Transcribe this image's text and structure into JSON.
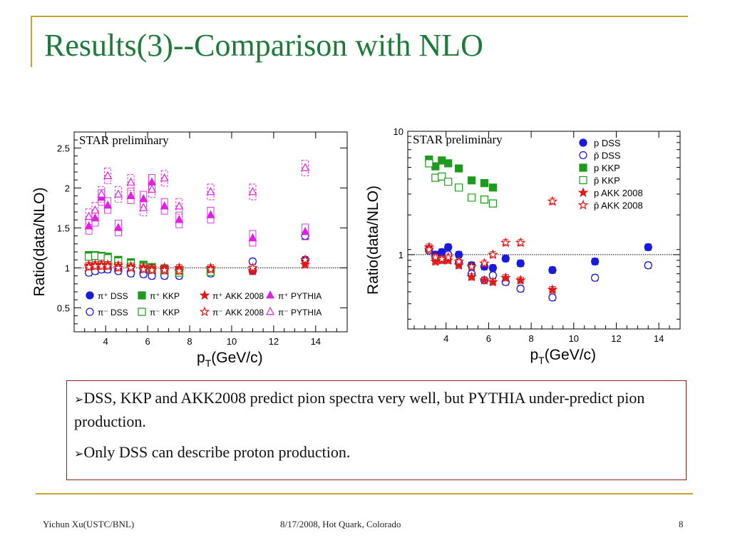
{
  "slide": {
    "title": "Results(3)--Comparison with NLO",
    "bullets": [
      "DSS, KKP and AKK2008 predict pion spectra very well, but PYTHIA under-predict pion production.",
      "Only DSS can describe proton production."
    ],
    "footer": {
      "author": "Yichun Xu(USTC/BNL)",
      "date_place": "8/17/2008, Hot Quark, Colorado",
      "page": "8"
    }
  },
  "chart_data": [
    {
      "type": "scatter",
      "annotation": "STAR preliminary",
      "ylabel": "Ratio(data/NLO)",
      "xlabel_main": "p",
      "xlabel_sub": "T",
      "xlabel_tail": "(GeV/c)",
      "xlim": [
        2.5,
        15.5
      ],
      "ylim": [
        0.2,
        2.7
      ],
      "yscale": "linear",
      "xticks": [
        4,
        6,
        8,
        10,
        12,
        14
      ],
      "yticks": [
        0.5,
        1,
        1.5,
        2,
        2.5
      ],
      "reference_line": 1,
      "legend_position": "bottom",
      "series": [
        {
          "name": "π⁺ DSS",
          "marker": "circle",
          "filled": true,
          "color": "#1a1adc",
          "x": [
            3.2,
            3.5,
            3.8,
            4.1,
            4.6,
            5.2,
            5.8,
            6.2,
            6.8,
            7.5,
            9.0,
            11.0,
            13.5
          ],
          "y": [
            0.95,
            0.97,
            0.99,
            1.0,
            0.98,
            0.95,
            0.94,
            0.93,
            0.93,
            0.92,
            0.97,
            0.96,
            1.1
          ]
        },
        {
          "name": "π⁻ DSS",
          "marker": "circle",
          "filled": false,
          "color": "#1a1adc",
          "x": [
            3.2,
            3.5,
            3.8,
            4.1,
            4.6,
            5.2,
            5.8,
            6.2,
            6.8,
            7.5,
            9.0,
            11.0,
            13.5
          ],
          "y": [
            0.94,
            0.96,
            0.98,
            0.98,
            0.96,
            0.93,
            0.92,
            0.9,
            0.9,
            0.9,
            0.93,
            1.08,
            1.4
          ]
        },
        {
          "name": "π⁺ KKP",
          "marker": "square",
          "filled": true,
          "color": "#1f9a1f",
          "x": [
            3.2,
            3.5,
            3.8,
            4.1,
            4.6,
            5.2,
            5.8,
            6.2,
            6.8,
            7.5,
            9.0
          ],
          "y": [
            1.16,
            1.16,
            1.15,
            1.14,
            1.1,
            1.07,
            1.04,
            1.01,
            0.99,
            0.95,
            0.97
          ]
        },
        {
          "name": "π⁻ KKP",
          "marker": "square",
          "filled": false,
          "color": "#1f9a1f",
          "x": [
            3.2,
            3.5,
            3.8,
            4.1,
            4.6,
            5.2,
            5.8,
            6.2,
            6.8,
            7.5,
            9.0
          ],
          "y": [
            1.14,
            1.15,
            1.14,
            1.12,
            1.08,
            1.05,
            1.02,
            0.99,
            0.97,
            0.94,
            0.95
          ]
        },
        {
          "name": "π⁺ AKK 2008",
          "marker": "star",
          "filled": true,
          "color": "#e01818",
          "x": [
            3.2,
            3.5,
            3.8,
            4.1,
            4.6,
            5.2,
            5.8,
            6.2,
            6.8,
            7.5,
            9.0,
            11.0,
            13.5
          ],
          "y": [
            1.03,
            1.04,
            1.04,
            1.04,
            1.03,
            1.02,
            1.01,
            1.0,
            1.0,
            1.0,
            1.0,
            0.96,
            1.04
          ]
        },
        {
          "name": "π⁻ AKK 2008",
          "marker": "star",
          "filled": false,
          "color": "#e01818",
          "x": [
            3.2,
            3.5,
            3.8,
            4.1,
            4.6,
            5.2,
            5.8,
            6.2,
            6.8,
            7.5,
            9.0,
            11.0,
            13.5
          ],
          "y": [
            1.01,
            1.02,
            1.02,
            1.02,
            1.0,
            1.0,
            0.98,
            0.97,
            0.97,
            0.96,
            0.98,
            1.0,
            1.1
          ]
        },
        {
          "name": "π⁺ PYTHIA",
          "marker": "triangle",
          "filled": true,
          "color": "#e020e0",
          "x": [
            3.2,
            3.5,
            3.8,
            4.1,
            4.6,
            5.2,
            5.8,
            6.2,
            6.8,
            7.5,
            9.0,
            11.0,
            13.5
          ],
          "y": [
            1.52,
            1.62,
            1.88,
            1.78,
            1.5,
            1.9,
            1.86,
            2.07,
            1.77,
            1.6,
            1.66,
            1.37,
            1.45
          ]
        },
        {
          "name": "π⁻ PYTHIA",
          "marker": "triangle",
          "filled": false,
          "color": "#e020e0",
          "x": [
            3.2,
            3.5,
            3.8,
            4.1,
            4.6,
            5.2,
            5.8,
            6.2,
            6.8,
            7.5,
            9.0,
            11.0,
            13.5
          ],
          "y": [
            1.64,
            1.72,
            1.92,
            2.15,
            1.92,
            2.07,
            1.75,
            1.98,
            2.12,
            1.77,
            1.95,
            1.95,
            2.25
          ]
        }
      ]
    },
    {
      "type": "scatter",
      "annotation": "STAR preliminary",
      "ylabel": "Ratio(data/NLO)",
      "xlabel_main": "p",
      "xlabel_sub": "T",
      "xlabel_tail": "(GeV/c)",
      "xlim": [
        2.2,
        15.0
      ],
      "ylim": [
        0.25,
        10
      ],
      "yscale": "log",
      "xticks": [
        4,
        6,
        8,
        10,
        12,
        14
      ],
      "yticks": [
        1,
        10
      ],
      "reference_line": 1,
      "legend_position": "top-right",
      "series": [
        {
          "name": "p DSS",
          "marker": "circle",
          "filled": true,
          "color": "#1a1adc",
          "x": [
            3.2,
            3.5,
            3.8,
            4.1,
            4.6,
            5.2,
            5.8,
            6.2,
            6.8,
            7.5,
            9.0,
            11.0,
            13.5
          ],
          "y": [
            1.1,
            1.0,
            1.05,
            1.15,
            1.0,
            0.82,
            0.8,
            0.78,
            0.93,
            0.85,
            0.75,
            0.88,
            1.15
          ]
        },
        {
          "name": "p̄ DSS",
          "marker": "circle",
          "filled": false,
          "color": "#1a1adc",
          "x": [
            3.2,
            3.5,
            3.8,
            4.1,
            4.6,
            5.2,
            5.8,
            6.2,
            6.8,
            7.5,
            9.0,
            11.0,
            13.5
          ],
          "y": [
            1.08,
            0.95,
            0.92,
            1.0,
            0.86,
            0.7,
            0.62,
            0.68,
            0.6,
            0.53,
            0.45,
            0.65,
            0.82
          ]
        },
        {
          "name": "p KKP",
          "marker": "square",
          "filled": true,
          "color": "#1f9a1f",
          "x": [
            3.2,
            3.5,
            3.8,
            4.1,
            4.6,
            5.2,
            5.8,
            6.2
          ],
          "y": [
            5.9,
            5.2,
            5.8,
            5.5,
            5.0,
            4.0,
            3.8,
            3.5
          ]
        },
        {
          "name": "p̄ KKP",
          "marker": "square",
          "filled": false,
          "color": "#1f9a1f",
          "x": [
            3.2,
            3.5,
            3.8,
            4.1,
            4.6,
            5.2,
            5.8,
            6.2
          ],
          "y": [
            5.5,
            4.2,
            4.3,
            3.9,
            3.5,
            2.9,
            2.8,
            2.6
          ]
        },
        {
          "name": "p AKK 2008",
          "marker": "star",
          "filled": true,
          "color": "#e01818",
          "x": [
            3.2,
            3.5,
            3.8,
            4.1,
            4.6,
            5.2,
            5.8,
            6.2,
            6.8,
            7.5,
            9.0
          ],
          "y": [
            1.15,
            0.88,
            0.9,
            0.9,
            0.82,
            0.66,
            0.62,
            0.6,
            0.65,
            0.62,
            0.52
          ]
        },
        {
          "name": "p̄ AKK 2008",
          "marker": "star",
          "filled": false,
          "color": "#e01818",
          "x": [
            3.2,
            3.5,
            3.8,
            4.1,
            4.6,
            5.2,
            5.8,
            6.2,
            6.8,
            7.5,
            9.0
          ],
          "y": [
            1.1,
            0.95,
            0.92,
            0.95,
            0.88,
            0.8,
            0.85,
            1.0,
            1.25,
            1.25,
            2.7
          ]
        }
      ]
    }
  ]
}
